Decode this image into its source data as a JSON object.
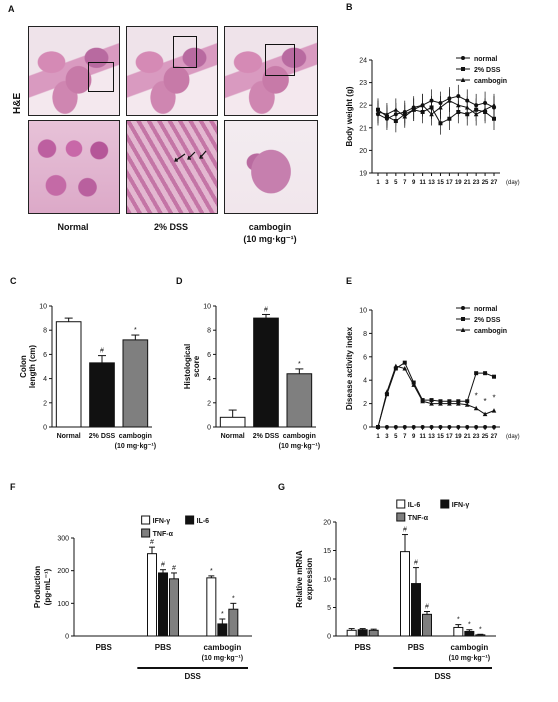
{
  "panels": {
    "A": "A",
    "B": "B",
    "C": "C",
    "D": "D",
    "E": "E",
    "F": "F",
    "G": "G"
  },
  "he_label": "H&E",
  "micro_captions": {
    "normal": "Normal",
    "dss": "2% DSS",
    "cambogin": "cambogin",
    "cambogin_dose": "(10 mg·kg⁻¹)"
  },
  "colors": {
    "bar_white": "#ffffff",
    "bar_black": "#111111",
    "bar_grey": "#7f7f7f",
    "line": "#111111"
  },
  "chart_data": [
    {
      "id": "B",
      "type": "line",
      "ylabel": "Body weight (g)",
      "x": [
        1,
        3,
        5,
        7,
        9,
        11,
        13,
        15,
        17,
        19,
        21,
        23,
        25,
        27
      ],
      "x_ticks": [
        "1",
        "3",
        "5",
        "7",
        "9",
        "11",
        "13",
        "15",
        "17",
        "19",
        "21",
        "23",
        "25",
        "27"
      ],
      "x_unit": "(day)",
      "ylim": [
        19,
        24
      ],
      "y_ticks": [
        "19",
        "20",
        "21",
        "22",
        "23",
        "24"
      ],
      "legend": [
        "normal",
        "2% DSS",
        "cambogin"
      ],
      "series": [
        {
          "name": "normal",
          "marker": "circle",
          "values": [
            21.6,
            21.4,
            21.6,
            21.7,
            21.9,
            22.0,
            22.2,
            22.1,
            22.3,
            22.4,
            22.2,
            22.0,
            22.1,
            21.9
          ]
        },
        {
          "name": "2% DSS",
          "marker": "square",
          "values": [
            21.8,
            21.5,
            21.3,
            21.6,
            21.8,
            21.7,
            21.9,
            21.2,
            21.4,
            21.7,
            21.6,
            21.8,
            21.7,
            21.4
          ]
        },
        {
          "name": "cambogin",
          "marker": "triangle",
          "values": [
            21.7,
            21.6,
            21.8,
            21.5,
            21.8,
            22.0,
            21.6,
            21.9,
            22.2,
            22.0,
            21.9,
            21.6,
            21.8,
            22.0
          ]
        }
      ]
    },
    {
      "id": "C",
      "type": "bar",
      "ylabel": "Colon length (cm)",
      "categories": [
        "Normal",
        "2% DSS",
        "cambogin (10 mg·kg⁻¹)"
      ],
      "values": [
        8.7,
        5.3,
        7.2
      ],
      "errors": [
        0.3,
        0.6,
        0.4
      ],
      "marks": [
        "",
        "#",
        "*"
      ],
      "ylim": [
        0,
        10
      ],
      "y_ticks": [
        "0",
        "2",
        "4",
        "6",
        "8",
        "10"
      ]
    },
    {
      "id": "D",
      "type": "bar",
      "ylabel": "Histological score",
      "categories": [
        "Normal",
        "2% DSS",
        "cambogin (10 mg·kg⁻¹)"
      ],
      "values": [
        0.8,
        9.0,
        4.4
      ],
      "errors": [
        0.6,
        0.3,
        0.4
      ],
      "marks": [
        "",
        "#",
        "*"
      ],
      "ylim": [
        0,
        10
      ],
      "y_ticks": [
        "0",
        "2",
        "4",
        "6",
        "8",
        "10"
      ]
    },
    {
      "id": "E",
      "type": "line",
      "ylabel": "Disease activity index",
      "x": [
        1,
        3,
        5,
        7,
        9,
        11,
        13,
        15,
        17,
        19,
        21,
        23,
        25,
        27
      ],
      "x_ticks": [
        "1",
        "3",
        "5",
        "7",
        "9",
        "11",
        "13",
        "15",
        "17",
        "19",
        "21",
        "23",
        "25",
        "27"
      ],
      "x_unit": "(day)",
      "ylim": [
        0,
        10
      ],
      "y_ticks": [
        "0",
        "2",
        "4",
        "6",
        "8",
        "10"
      ],
      "legend": [
        "normal",
        "2% DSS",
        "cambogin"
      ],
      "series": [
        {
          "name": "normal",
          "marker": "circle",
          "values": [
            0,
            0,
            0,
            0,
            0,
            0,
            0,
            0,
            0,
            0,
            0,
            0,
            0,
            0
          ]
        },
        {
          "name": "2% DSS",
          "marker": "square",
          "values": [
            0,
            2.8,
            5.0,
            5.5,
            3.8,
            2.3,
            2.3,
            2.2,
            2.2,
            2.2,
            2.2,
            4.6,
            4.6,
            4.3
          ]
        },
        {
          "name": "cambogin",
          "marker": "triangle",
          "values": [
            0,
            3.0,
            5.2,
            5.0,
            3.6,
            2.2,
            2.0,
            2.0,
            2.0,
            2.0,
            1.9,
            1.6,
            1.1,
            1.4
          ]
        }
      ],
      "marks": {
        "23": "*",
        "25": "*",
        "27": "*"
      }
    },
    {
      "id": "F",
      "type": "bar",
      "ylabel": "Production (pg·mL⁻¹)",
      "groups": [
        "PBS",
        "PBS",
        "cambogin (10 mg·kg⁻¹)"
      ],
      "bracket_label": "DSS",
      "legend": [
        "IFN-γ",
        "IL-6",
        "TNF-α"
      ],
      "series": [
        {
          "name": "IFN-γ",
          "values": [
            0,
            252,
            178
          ],
          "errors": [
            0,
            20,
            6
          ],
          "marks": [
            "",
            "#",
            "*"
          ]
        },
        {
          "name": "IL-6",
          "values": [
            0,
            193,
            37
          ],
          "errors": [
            0,
            10,
            15
          ],
          "marks": [
            "",
            "#",
            "*"
          ]
        },
        {
          "name": "TNF-α",
          "values": [
            0,
            175,
            82
          ],
          "errors": [
            0,
            18,
            18
          ],
          "marks": [
            "",
            "#",
            "*"
          ]
        }
      ],
      "ylim": [
        0,
        300
      ],
      "y_ticks": [
        "0",
        "100",
        "200",
        "300"
      ]
    },
    {
      "id": "G",
      "type": "bar",
      "ylabel": "Relative mRNA expression",
      "groups": [
        "PBS",
        "PBS",
        "cambogin (10 mg·kg⁻¹)"
      ],
      "bracket_label": "DSS",
      "legend": [
        "IL-6",
        "IFN-γ",
        "TNF-α"
      ],
      "series": [
        {
          "name": "IL-6",
          "values": [
            1.0,
            14.8,
            1.5
          ],
          "errors": [
            0.3,
            3.0,
            0.5
          ],
          "marks": [
            "",
            "#",
            "*"
          ]
        },
        {
          "name": "IFN-γ",
          "values": [
            1.1,
            9.2,
            0.8
          ],
          "errors": [
            0.2,
            2.8,
            0.3
          ],
          "marks": [
            "",
            "#",
            "*"
          ]
        },
        {
          "name": "TNF-α",
          "values": [
            1.0,
            3.8,
            0.2
          ],
          "errors": [
            0.2,
            0.5,
            0.1
          ],
          "marks": [
            "",
            "#",
            "*"
          ]
        }
      ],
      "ylim": [
        0,
        20
      ],
      "y_ticks": [
        "0",
        "5",
        "10",
        "15",
        "20"
      ]
    }
  ]
}
